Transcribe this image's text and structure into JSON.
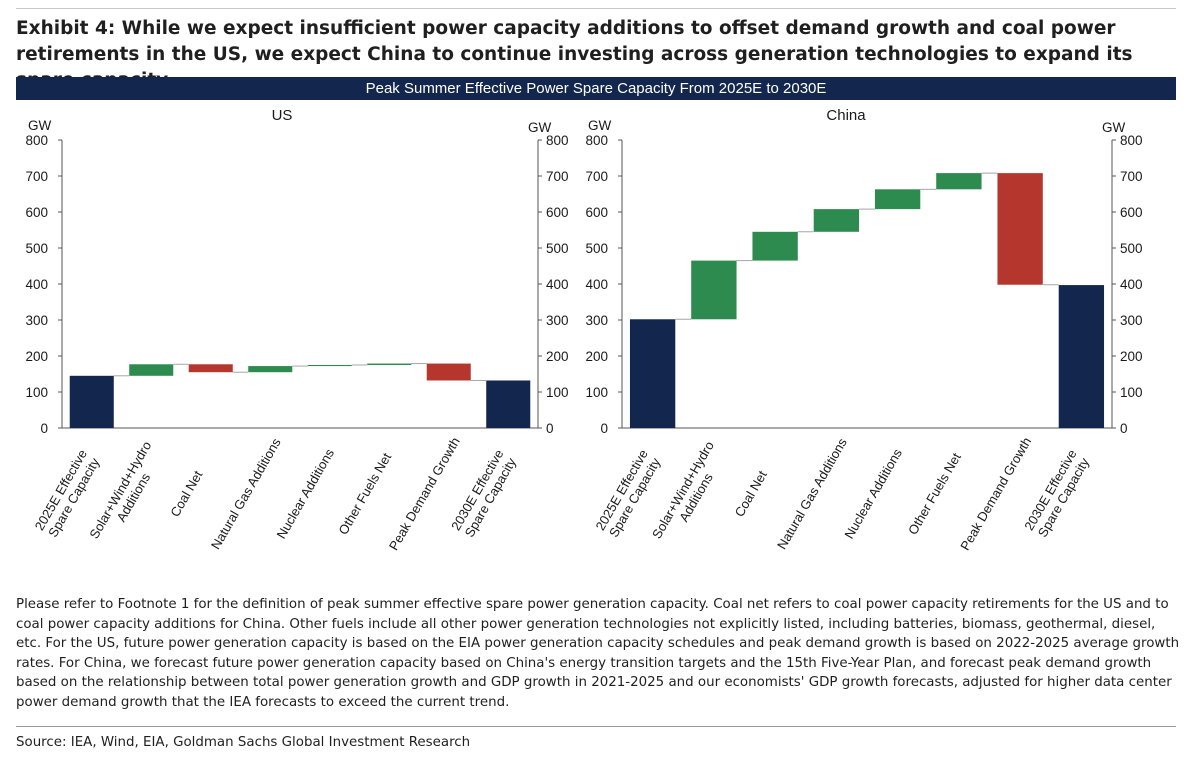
{
  "exhibit_title": "Exhibit 4: While we expect insufficient power capacity additions to offset demand growth and coal power retirements in the US, we expect China to continue investing across generation technologies to expand its spare capacity",
  "banner_title": "Peak Summer Effective Power Spare Capacity From 2025E to 2030E",
  "footnote": "Please refer to Footnote 1 for the definition of peak summer effective spare power generation capacity. Coal net refers to coal power capacity retirements for the US and to coal power capacity additions for China. Other fuels include all other power generation technologies not explicitly listed, including batteries, biomass, geothermal, diesel, etc. For the US, future power generation capacity is based on the EIA power generation capacity schedules and peak demand growth is based on 2022-2025 average growth rates. For China, we forecast future power generation capacity based on China's energy transition targets and the 15th Five-Year Plan, and forecast peak demand growth based on the relationship between total power generation growth and GDP growth in 2021-2025 and our economists' GDP growth forecasts, adjusted for higher data center power demand growth that the IEA forecasts to exceed the current trend.",
  "source": "Source: IEA, Wind, EIA, Goldman Sachs Global Investment Research",
  "colors": {
    "total": "#13264d",
    "increase": "#2e8b4f",
    "decrease": "#b5362d",
    "connector": "#a6a6a6",
    "banner": "#13264d"
  },
  "chart_data": [
    {
      "type": "waterfall",
      "title": "US",
      "ylabel_left": "GW",
      "ylabel_right": "GW",
      "ylim": [
        0,
        800
      ],
      "yticks": [
        0,
        100,
        200,
        300,
        400,
        500,
        600,
        700,
        800
      ],
      "grid": false,
      "categories": [
        "2025E Effective Spare Capacity",
        "Solar+Wind+Hydro Additions",
        "Coal Net",
        "Natural Gas Additions",
        "Nuclear Additions",
        "Other Fuels Net",
        "Peak Demand Growth",
        "2030E Effective Spare Capacity"
      ],
      "label_lines": [
        [
          "2025E Effective",
          "Spare Capacity"
        ],
        [
          "Solar+Wind+Hydro",
          "Additions"
        ],
        [
          "Coal Net"
        ],
        [
          "Natural Gas Additions"
        ],
        [
          "Nuclear Additions"
        ],
        [
          "Other Fuels Net"
        ],
        [
          "Peak Demand Growth"
        ],
        [
          "2030E Effective",
          "Spare Capacity"
        ]
      ],
      "values": [
        145,
        32,
        -22,
        17,
        3,
        4,
        -47,
        132
      ],
      "kinds": [
        "total",
        "increase",
        "decrease",
        "increase",
        "increase",
        "increase",
        "decrease",
        "total"
      ]
    },
    {
      "type": "waterfall",
      "title": "China",
      "ylabel_left": "GW",
      "ylabel_right": "GW",
      "ylim": [
        0,
        800
      ],
      "yticks": [
        0,
        100,
        200,
        300,
        400,
        500,
        600,
        700,
        800
      ],
      "grid": false,
      "categories": [
        "2025E Effective Spare Capacity",
        "Solar+Wind+Hydro Additions",
        "Coal Net",
        "Natural Gas Additions",
        "Nuclear Additions",
        "Other Fuels Net",
        "Peak Demand Growth",
        "2030E Effective Spare Capacity"
      ],
      "label_lines": [
        [
          "2025E Effective",
          "Spare Capacity"
        ],
        [
          "Solar+Wind+Hydro",
          "Additions"
        ],
        [
          "Coal Net"
        ],
        [
          "Natural Gas Additions"
        ],
        [
          "Nuclear Additions"
        ],
        [
          "Other Fuels Net"
        ],
        [
          "Peak Demand Growth"
        ],
        [
          "2030E Effective",
          "Spare Capacity"
        ]
      ],
      "values": [
        302,
        163,
        80,
        63,
        55,
        45,
        -310,
        397
      ],
      "kinds": [
        "total",
        "increase",
        "increase",
        "increase",
        "increase",
        "increase",
        "decrease",
        "total"
      ]
    }
  ]
}
